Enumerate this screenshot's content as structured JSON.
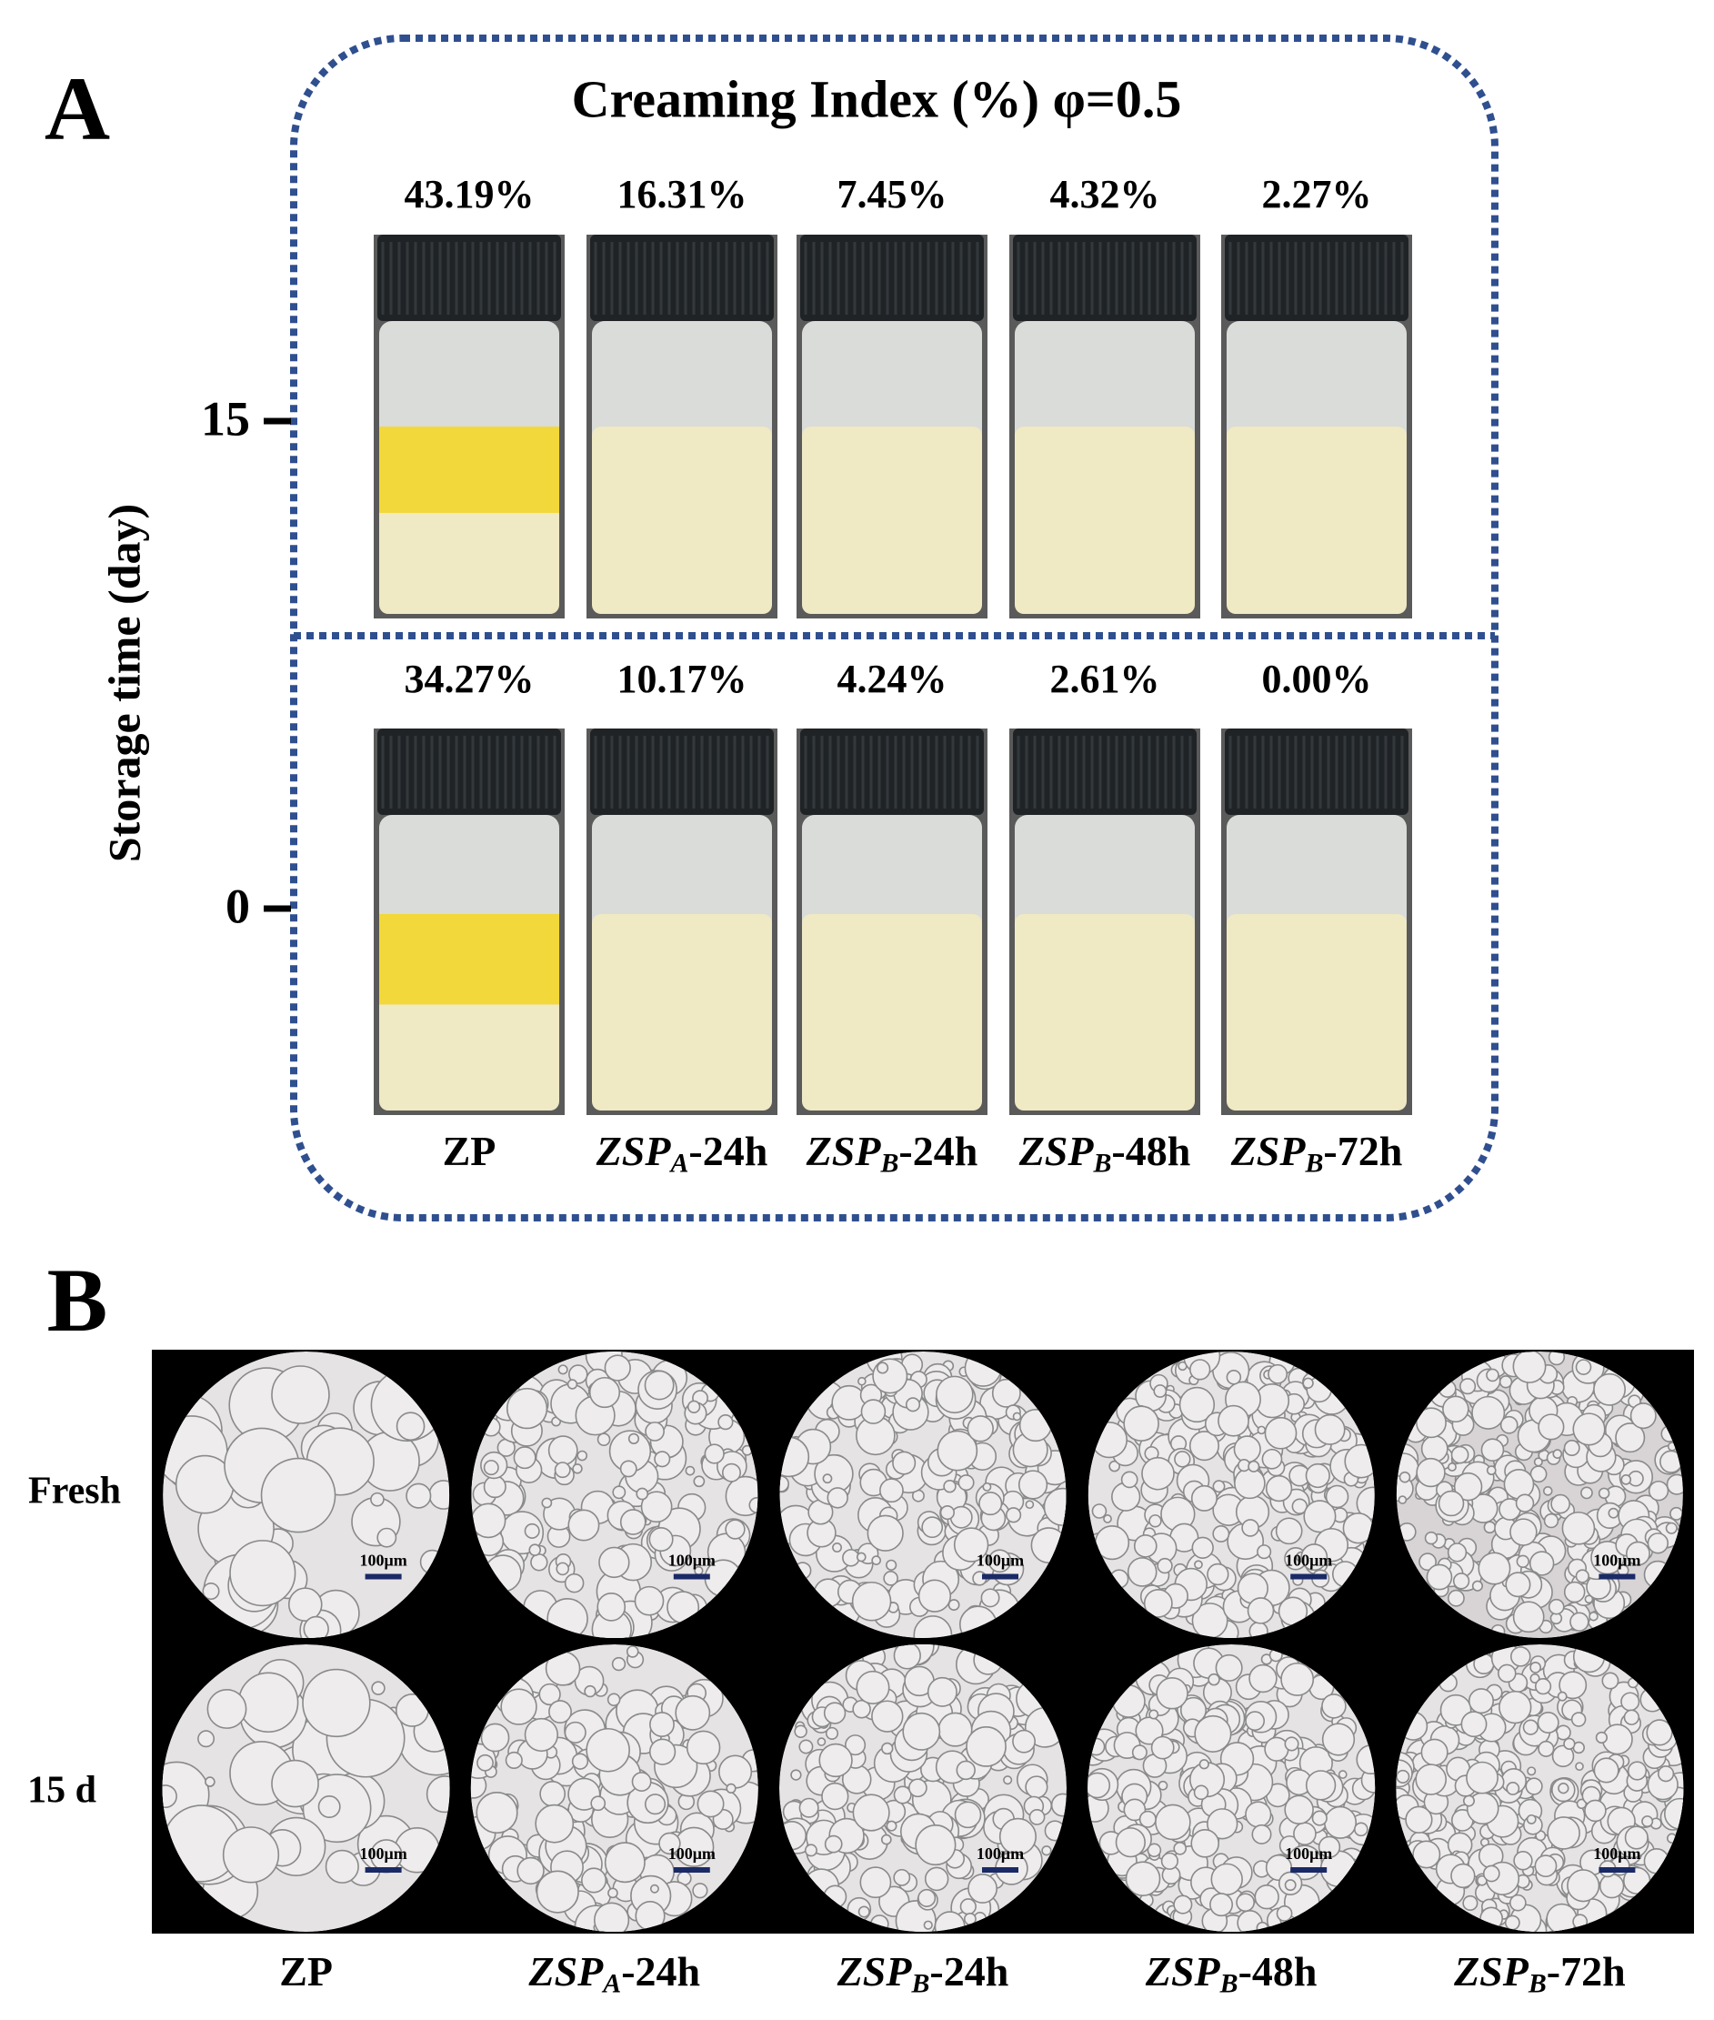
{
  "panel_a": {
    "label": "A",
    "title": "Creaming Index (%)   φ=0.5",
    "y_axis_label": "Storage time (day)",
    "rows": [
      {
        "tick": "15",
        "values": [
          "43.19%",
          "16.31%",
          "7.45%",
          "4.32%",
          "2.27%"
        ]
      },
      {
        "tick": "0",
        "values": [
          "34.27%",
          "10.17%",
          "4.24%",
          "2.61%",
          "0.00%"
        ]
      }
    ],
    "samples": [
      {
        "base": "ZP"
      },
      {
        "base": "ZSP",
        "sub": "A",
        "suffix": "-24h"
      },
      {
        "base": "ZSP",
        "sub": "B",
        "suffix": "-24h"
      },
      {
        "base": "ZSP",
        "sub": "B",
        "suffix": "-48h"
      },
      {
        "base": "ZSP",
        "sub": "B",
        "suffix": "-72h"
      }
    ]
  },
  "panel_b": {
    "label": "B",
    "rows": [
      {
        "label": "Fresh",
        "scale_bars": [
          "100μm",
          "100μm",
          "100μm",
          "100μm",
          "100μm"
        ]
      },
      {
        "label": "15 d",
        "scale_bars": [
          "100μm",
          "100μm",
          "100μm",
          "100μm",
          "100μm"
        ]
      }
    ],
    "samples": [
      {
        "base": "ZP"
      },
      {
        "base": "ZSP",
        "sub": "A",
        "suffix": "-24h"
      },
      {
        "base": "ZSP",
        "sub": "B",
        "suffix": "-24h"
      },
      {
        "base": "ZSP",
        "sub": "B",
        "suffix": "-48h"
      },
      {
        "base": "ZSP",
        "sub": "B",
        "suffix": "-72h"
      }
    ]
  }
}
